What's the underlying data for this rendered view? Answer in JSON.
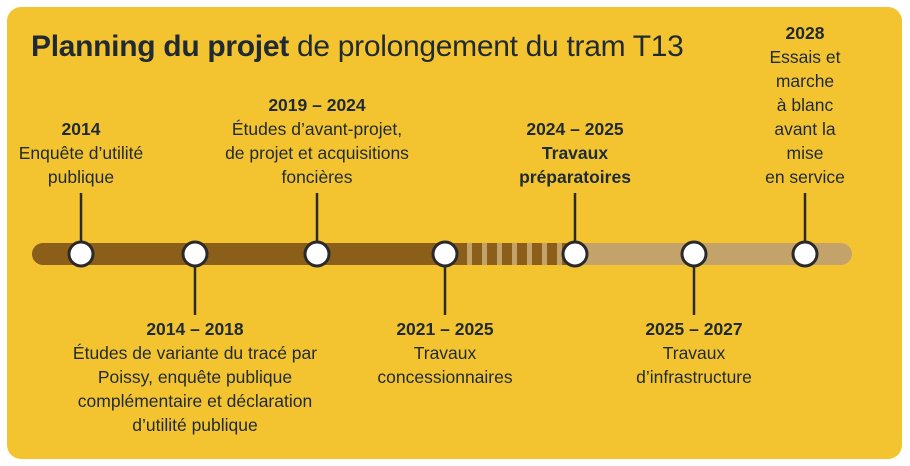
{
  "title": {
    "bold": "Planning du projet",
    "rest": "de prolongement du tram T13"
  },
  "colors": {
    "background": "#F4C430",
    "track_done": "#8B5E1A",
    "track_future": "#C4A36B",
    "node_fill": "#ffffff",
    "node_stroke": "#2a2a2a",
    "text": "#1f2a33"
  },
  "milestones": [
    {
      "year": "2014",
      "description": "Enquête d’utilité\npublique",
      "position": "above"
    },
    {
      "year": "2014 – 2018",
      "description": "Études de variante du tracé par\nPoissy, enquête publique\ncomplémentaire et déclaration\nd’utilité publique",
      "position": "below"
    },
    {
      "year": "2019 – 2024",
      "description": "Études d’avant-projet,\nde projet et acquisitions\nfoncières",
      "position": "above"
    },
    {
      "year": "2021 – 2025",
      "description": "Travaux\nconcessionnaires",
      "position": "below"
    },
    {
      "year": "2024 – 2025",
      "description": "Travaux\npréparatoires",
      "position": "above",
      "emphasis": true
    },
    {
      "year": "2025 – 2027",
      "description": "Travaux\nd’infrastructure",
      "position": "below"
    },
    {
      "year": "2028",
      "description": "Essais et marche\nà blanc avant la mise\nen service",
      "position": "above"
    }
  ]
}
